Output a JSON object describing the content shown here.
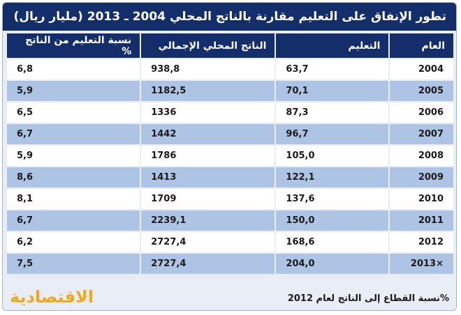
{
  "chart_data": {
    "type": "table",
    "title": "تطور الإنفاق على التعليم مقارنة بالناتج المحلي 2004 ـ 2013 (مليار ريال)",
    "columns": [
      "العام",
      "التعليم",
      "الناتج المحلي الإجمالي",
      "نسبة التعليم من الناتج %"
    ],
    "rows": [
      {
        "year": "2004",
        "education": "63,7",
        "gdp": "938,8",
        "ratio": "6,8"
      },
      {
        "year": "2005",
        "education": "70,1",
        "gdp": "1182,5",
        "ratio": "5,9"
      },
      {
        "year": "2006",
        "education": "87,3",
        "gdp": "1336",
        "ratio": "6,5"
      },
      {
        "year": "2007",
        "education": "96,7",
        "gdp": "1442",
        "ratio": "6,7"
      },
      {
        "year": "2008",
        "education": "105,0",
        "gdp": "1786",
        "ratio": "5,9"
      },
      {
        "year": "2009",
        "education": "122,1",
        "gdp": "1413",
        "ratio": "8,6"
      },
      {
        "year": "2010",
        "education": "137,6",
        "gdp": "1709",
        "ratio": "8,1"
      },
      {
        "year": "2011",
        "education": "150,0",
        "gdp": "2239,1",
        "ratio": "6,7"
      },
      {
        "year": "2012",
        "education": "168,6",
        "gdp": "2727,4",
        "ratio": "6,2"
      },
      {
        "year": "2013×",
        "education": "204,0",
        "gdp": "2727,4",
        "ratio": "7,5"
      }
    ],
    "footnote": "%نسبة القطاع إلى الناتج لعام 2012",
    "source_logo": "الاقتصادية"
  },
  "colors": {
    "header": "#142e6c",
    "row_light": "#ffffff",
    "row_dark": "#aec4e4",
    "logo": "#f3a81b"
  }
}
